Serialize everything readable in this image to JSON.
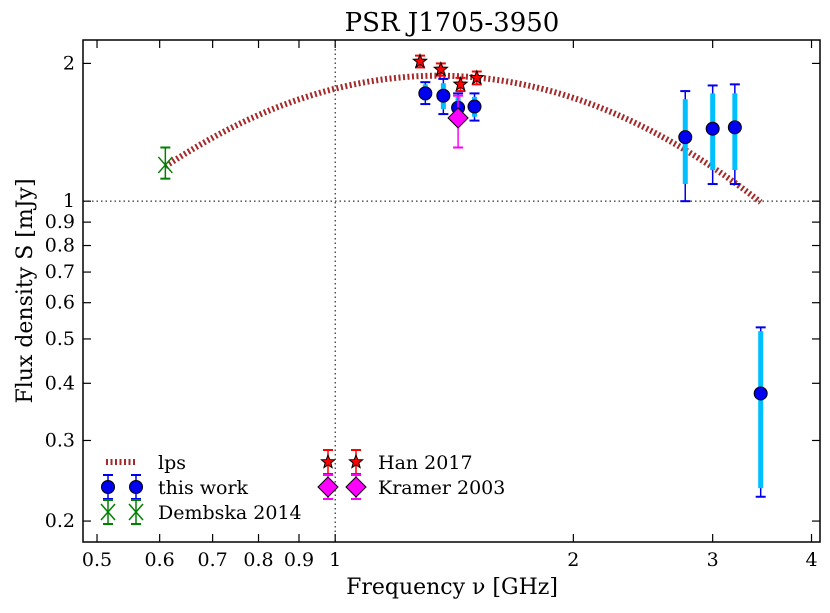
{
  "chart_data": {
    "type": "scatter",
    "title": "PSR J1705-3950",
    "xlabel": "Frequency ν [GHz]",
    "ylabel": "Flux density S [mJy]",
    "xscale": "log",
    "yscale": "log",
    "xlim": [
      0.48,
      4.1
    ],
    "ylim": [
      0.18,
      2.25
    ],
    "xticks": [
      0.5,
      0.6,
      0.7,
      0.8,
      0.9,
      1,
      2,
      3,
      4
    ],
    "xtick_labels": [
      "0.5",
      "0.6",
      "0.7",
      "0.8",
      "0.9",
      "1",
      "2",
      "3",
      "4"
    ],
    "yticks": [
      0.2,
      0.3,
      0.4,
      0.5,
      0.6,
      0.7,
      0.8,
      0.9,
      1,
      2
    ],
    "ytick_labels": [
      "0.2",
      "0.3",
      "0.4",
      "0.5",
      "0.6",
      "0.7",
      "0.8",
      "0.9",
      "1",
      "2"
    ],
    "reference_lines": {
      "x": 1,
      "y": 1
    },
    "lps_curve": {
      "name": "lps",
      "color": "#a52a2a",
      "x_range": [
        0.61,
        3.45
      ],
      "peak_x": 1.35,
      "peak_y": 1.88,
      "edge_points": [
        [
          0.61,
          1.27
        ],
        [
          3.45,
          0.91
        ]
      ]
    },
    "series": [
      {
        "name": "this work",
        "marker": "circle",
        "color": "#0000ee",
        "errorbar_color": "#0000ee",
        "inner_bar_color": "#00bfff",
        "points": [
          {
            "x": 1.3,
            "y": 1.72,
            "err": [
              1.63,
              1.82
            ],
            "inner": [
              1.66,
              1.8
            ]
          },
          {
            "x": 1.37,
            "y": 1.7,
            "err": [
              1.55,
              1.85
            ],
            "inner": [
              1.59,
              1.81
            ]
          },
          {
            "x": 1.43,
            "y": 1.6,
            "err": [
              1.5,
              1.72
            ],
            "inner": [
              1.53,
              1.69
            ]
          },
          {
            "x": 1.5,
            "y": 1.61,
            "err": [
              1.5,
              1.72
            ],
            "inner": [
              1.53,
              1.69
            ]
          },
          {
            "x": 2.77,
            "y": 1.38,
            "err": [
              1.0,
              1.74
            ],
            "inner": [
              1.09,
              1.67
            ]
          },
          {
            "x": 3.0,
            "y": 1.44,
            "err": [
              1.09,
              1.79
            ],
            "inner": [
              1.17,
              1.72
            ]
          },
          {
            "x": 3.2,
            "y": 1.45,
            "err": [
              1.09,
              1.8
            ],
            "inner": [
              1.17,
              1.72
            ]
          },
          {
            "x": 3.45,
            "y": 0.38,
            "err": [
              0.226,
              0.53
            ],
            "inner": [
              0.236,
              0.52
            ]
          }
        ]
      },
      {
        "name": "Dembska 2014",
        "marker": "x",
        "color": "#008000",
        "points": [
          {
            "x": 0.61,
            "y": 1.2,
            "err": [
              1.12,
              1.31
            ]
          }
        ]
      },
      {
        "name": "Han 2017",
        "marker": "star",
        "color": "#ff0000",
        "errorbar_color": "#ff0000",
        "points": [
          {
            "x": 1.28,
            "y": 2.02,
            "err": [
              1.96,
              2.08
            ]
          },
          {
            "x": 1.36,
            "y": 1.94,
            "err": [
              1.88,
              2.0
            ]
          },
          {
            "x": 1.44,
            "y": 1.8,
            "err": [
              1.74,
              1.86
            ]
          },
          {
            "x": 1.51,
            "y": 1.86,
            "err": [
              1.8,
              1.92
            ]
          }
        ]
      },
      {
        "name": "Kramer 2003",
        "marker": "diamond",
        "color": "#ff00ff",
        "points": [
          {
            "x": 1.43,
            "y": 1.52,
            "err": [
              1.31,
              1.7
            ]
          }
        ]
      }
    ],
    "legend": {
      "placement": "lower-left",
      "columns": [
        [
          "lps",
          "this work",
          "Dembska 2014"
        ],
        [
          "Han 2017",
          "Kramer 2003"
        ]
      ]
    }
  }
}
